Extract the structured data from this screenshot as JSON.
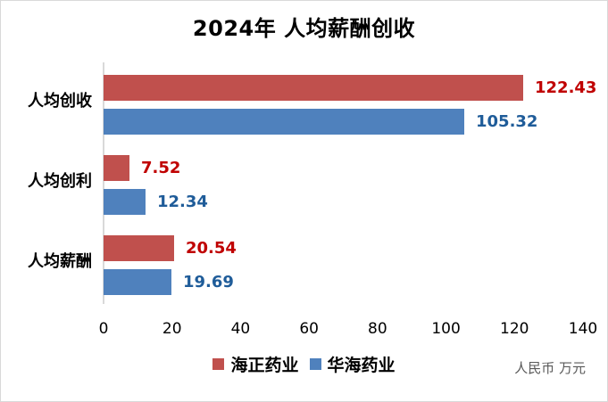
{
  "title": "2024年 人均薪酬创收",
  "unit_note": "人民币 万元",
  "chart_data": {
    "type": "bar",
    "orientation": "horizontal",
    "title": "2024年 人均薪酬创收",
    "categories": [
      "人均创收",
      "人均创利",
      "人均薪酬"
    ],
    "series": [
      {
        "name": "海正药业",
        "values": [
          122.43,
          7.52,
          20.54
        ],
        "color": "#C0504D",
        "label_color": "#C00000"
      },
      {
        "name": "华海药业",
        "values": [
          105.32,
          12.34,
          19.69
        ],
        "color": "#4F81BD",
        "label_color": "#1F5C99"
      }
    ],
    "xlim": [
      0,
      140
    ],
    "x_ticks": [
      0,
      20,
      40,
      60,
      80,
      100,
      120,
      140
    ],
    "value_labels": true,
    "grid": false,
    "legend_position": "bottom",
    "unit_note": "人民币 万元",
    "colors": {
      "axis_line": "#D9D9D9",
      "tick_text": "#000000",
      "unit_text": "#595959",
      "border": "#D9D9D9"
    }
  }
}
